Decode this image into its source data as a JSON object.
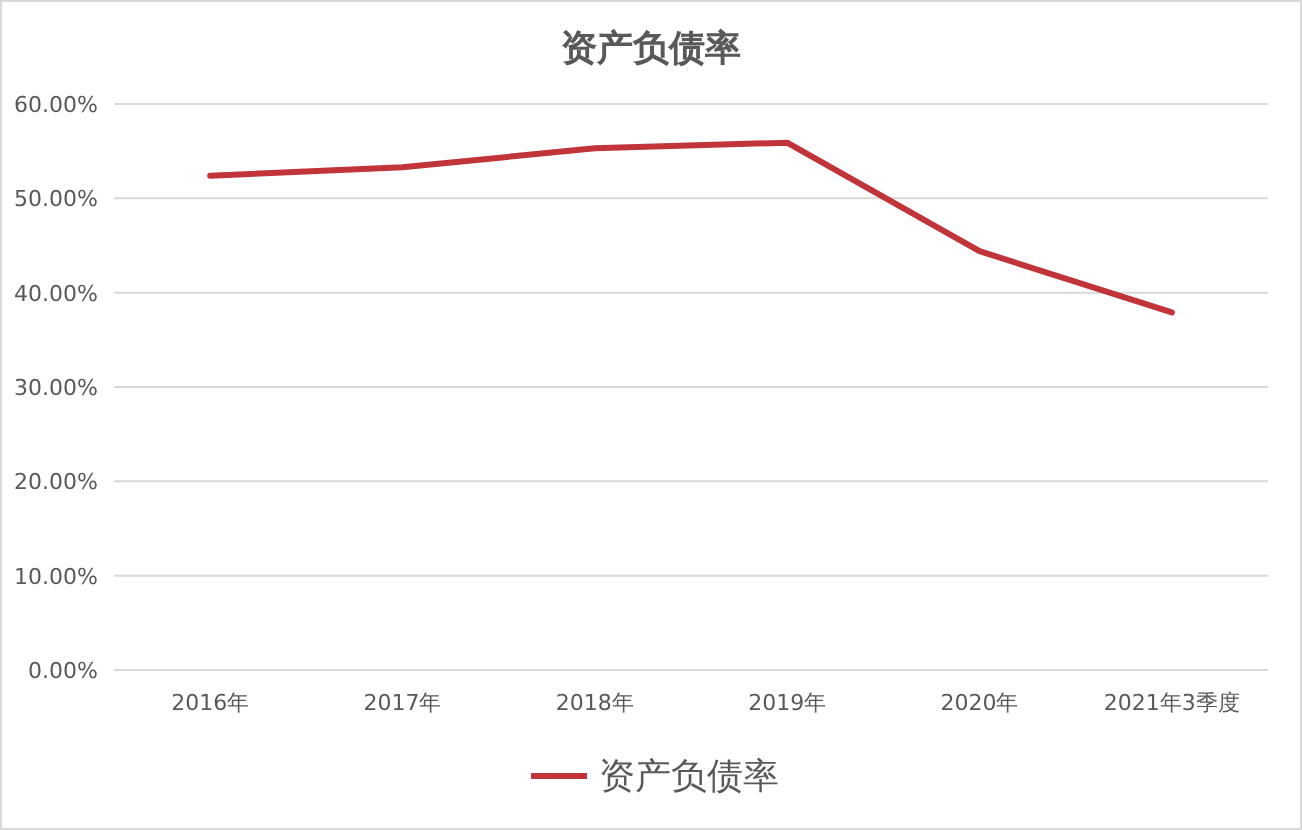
{
  "chart_data": {
    "type": "line",
    "title": "资产负债率",
    "categories": [
      "2016年",
      "2017年",
      "2018年",
      "2019年",
      "2020年",
      "2021年3季度"
    ],
    "series": [
      {
        "name": "资产负债率",
        "color": "#c0343a",
        "values": [
          52.4,
          53.3,
          55.3,
          55.9,
          44.4,
          37.9
        ]
      }
    ],
    "ylim": [
      0,
      60
    ],
    "yticks": [
      {
        "value": 0,
        "label": "0.00%"
      },
      {
        "value": 10,
        "label": "10.00%"
      },
      {
        "value": 20,
        "label": "20.00%"
      },
      {
        "value": 30,
        "label": "30.00%"
      },
      {
        "value": 40,
        "label": "40.00%"
      },
      {
        "value": 50,
        "label": "50.00%"
      },
      {
        "value": 60,
        "label": "60.00%"
      }
    ],
    "grid": "y",
    "legend": "bottom",
    "marker": "none",
    "line_style": "solid"
  }
}
